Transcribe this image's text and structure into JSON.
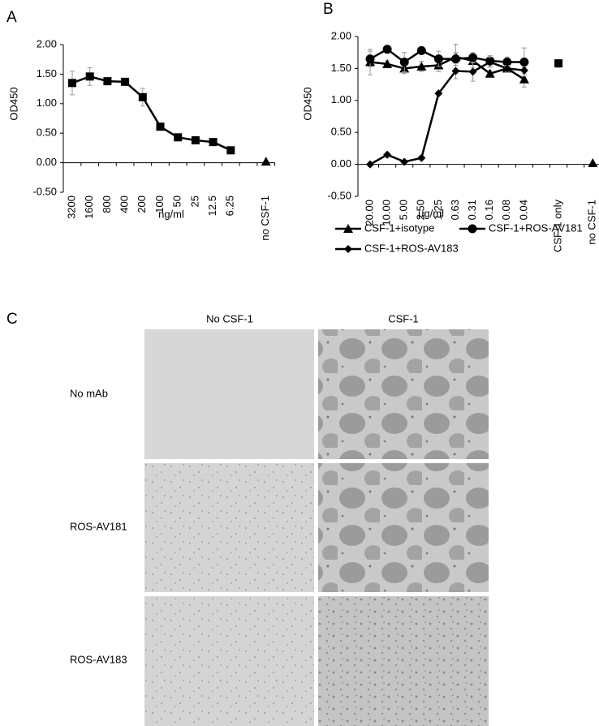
{
  "chart_data": [
    {
      "type": "line",
      "panel": "A",
      "y_label": "OD450",
      "x_label": "ng/ml",
      "categories": [
        "3200",
        "1600",
        "800",
        "400",
        "200",
        "100",
        "50",
        "25",
        "12.5",
        "6.25",
        null,
        "no CSF-1"
      ],
      "series": [
        {
          "color": "#000000",
          "marker": "square",
          "values": [
            1.35,
            1.46,
            1.38,
            1.37,
            1.11,
            0.61,
            0.43,
            0.38,
            0.35,
            0.21,
            null,
            null
          ],
          "errors": [
            0.2,
            0.15,
            0.05,
            0.05,
            0.15,
            0.05,
            0.03,
            0.03,
            0.03,
            0.03,
            null,
            null
          ]
        },
        {
          "color": "#000000",
          "marker": "triangle",
          "values": [
            null,
            null,
            null,
            null,
            null,
            null,
            null,
            null,
            null,
            null,
            null,
            0.02
          ]
        }
      ],
      "ylim": [
        -0.5,
        2.0
      ],
      "yticks": [
        {
          "value": -0.5,
          "label": "-0.50"
        },
        {
          "value": 0,
          "label": "0.00"
        },
        {
          "value": 0.5,
          "label": "0.50"
        },
        {
          "value": 1.0,
          "label": "1.00"
        },
        {
          "value": 1.5,
          "label": "1.50"
        },
        {
          "value": 2.0,
          "label": "2.00"
        }
      ],
      "grid": false
    },
    {
      "type": "line",
      "panel": "B",
      "y_label": "OD450",
      "x_label": "µg/ml",
      "legend": "bottom",
      "categories": [
        "20.00",
        "10.00",
        "5.00",
        "2.50",
        "1.25",
        "0.63",
        "0.31",
        "0.16",
        "0.08",
        "0.04",
        null,
        "CSF-1 only",
        null,
        "no CSF-1"
      ],
      "series": [
        {
          "name": "CSF-1+isotype",
          "color": "#000000",
          "marker": "triangle",
          "values": [
            1.6,
            1.57,
            1.5,
            1.53,
            1.55,
            1.68,
            1.62,
            1.42,
            1.5,
            1.33,
            null,
            null,
            null,
            null
          ],
          "errors": [
            0.2,
            0.05,
            0.08,
            0.08,
            0.1,
            0.2,
            0.1,
            0.05,
            0.05,
            0.12,
            null,
            null,
            null,
            null
          ]
        },
        {
          "name": "CSF-1+ROS-AV181",
          "color": "#000000",
          "marker": "circle",
          "values": [
            1.65,
            1.8,
            1.6,
            1.78,
            1.65,
            1.65,
            1.67,
            1.62,
            1.6,
            1.6,
            null,
            null,
            null,
            null
          ],
          "errors": [
            0.12,
            0.05,
            0.15,
            0.05,
            0.12,
            0.1,
            0.08,
            0.08,
            0.08,
            0.22,
            null,
            null,
            null,
            null
          ]
        },
        {
          "name": "CSF-1+ROS-AV183",
          "color": "#000000",
          "marker": "diamond",
          "values": [
            0.0,
            0.15,
            0.04,
            0.1,
            1.11,
            1.46,
            1.45,
            1.6,
            1.5,
            1.47,
            null,
            null,
            null,
            null
          ],
          "errors": [
            0.02,
            0.03,
            0.02,
            0.03,
            0.03,
            0.12,
            0.15,
            0.08,
            0.05,
            0.05,
            null,
            null,
            null,
            null
          ]
        },
        {
          "color": "#000000",
          "marker": "square",
          "values": [
            null,
            null,
            null,
            null,
            null,
            null,
            null,
            null,
            null,
            null,
            null,
            1.58,
            null,
            null
          ],
          "errors": [
            null,
            null,
            null,
            null,
            null,
            null,
            null,
            null,
            null,
            null,
            null,
            0.06,
            null,
            null
          ]
        },
        {
          "color": "#000000",
          "marker": "triangle",
          "values": [
            null,
            null,
            null,
            null,
            null,
            null,
            null,
            null,
            null,
            null,
            null,
            null,
            null,
            0.02
          ]
        }
      ],
      "ylim": [
        -0.5,
        2.0
      ],
      "yticks": [
        {
          "value": -0.5,
          "label": "-0.50"
        },
        {
          "value": 0,
          "label": "0.00"
        },
        {
          "value": 0.5,
          "label": "0.50"
        },
        {
          "value": 1.0,
          "label": "1.00"
        },
        {
          "value": 1.5,
          "label": "1.50"
        },
        {
          "value": 2.0,
          "label": "2.00"
        }
      ],
      "grid": false
    }
  ],
  "panel_c": {
    "panel": "C",
    "columns": [
      "No CSF-1",
      "CSF-1"
    ],
    "rows": [
      "No mAb",
      "ROS-AV181",
      "ROS-AV183"
    ]
  }
}
